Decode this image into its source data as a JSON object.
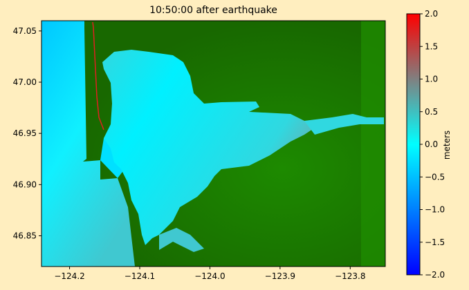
{
  "title": "10:50:00 after earthquake",
  "map": {
    "x_ticks": [
      "−124.2",
      "−124.1",
      "−124.0",
      "−123.9",
      "−123.8"
    ],
    "x_values": [
      -124.2,
      -124.1,
      -124.0,
      -123.9,
      -123.8
    ],
    "x_range": [
      -124.24,
      -123.75
    ],
    "y_ticks": [
      "47.05",
      "47.00",
      "46.95",
      "46.90",
      "46.85"
    ],
    "y_values": [
      47.05,
      47.0,
      46.95,
      46.9,
      46.85
    ],
    "y_range": [
      46.82,
      47.06
    ],
    "land_color": "#1a6e00",
    "water_color": "#00f0ff"
  },
  "colorbar": {
    "label": "meters",
    "range": [
      -2.0,
      2.0
    ],
    "ticks": [
      "2.0",
      "1.5",
      "1.0",
      "0.5",
      "0.0",
      "−0.5",
      "−1.0",
      "−1.5",
      "−2.0"
    ],
    "tick_values": [
      2.0,
      1.5,
      1.0,
      0.5,
      0.0,
      -0.5,
      -1.0,
      -1.5,
      -2.0
    ],
    "colors": [
      "#0000ff",
      "#00ffff",
      "#808080",
      "#ff0000"
    ]
  }
}
